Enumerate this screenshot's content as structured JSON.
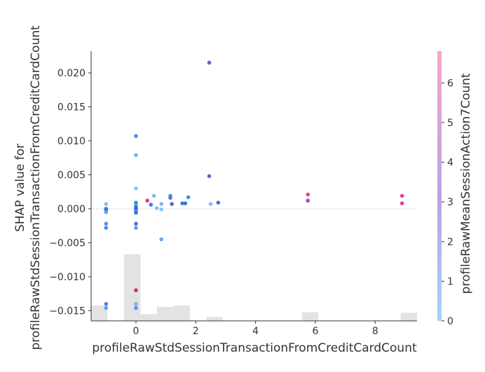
{
  "chart_data": {
    "type": "scatter",
    "xlabel": "profileRawStdSessionTransactionFromCreditCardCount",
    "ylabel_lines": [
      "SHAP value for",
      "profileRawStdSessionTransactionFromCreditCardCount"
    ],
    "colorbar_label": "profileRawMeanSessionAction7Count",
    "xlim": [
      -1.5,
      9.4
    ],
    "ylim": [
      -0.0165,
      0.0232
    ],
    "x_ticks": [
      0,
      2,
      4,
      6,
      8
    ],
    "y_ticks": [
      -0.015,
      -0.01,
      -0.005,
      0.0,
      0.005,
      0.01,
      0.015,
      0.02
    ],
    "y_tick_labels": [
      "−0.015",
      "−0.010",
      "−0.005",
      "0.000",
      "0.005",
      "0.010",
      "0.015",
      "0.020"
    ],
    "colorbar_range": [
      0,
      6.8
    ],
    "colorbar_ticks": [
      0,
      1,
      2,
      3,
      4,
      5,
      6
    ],
    "colors": {
      "low": "#a3d4f7",
      "mid": "#b9a3e6",
      "high": "#f5a6c8",
      "histogram": "#e3e3e3",
      "zero_line": "#c8c8c8",
      "axis": "#333333"
    },
    "histogram": {
      "max_count": 100,
      "bins": [
        {
          "x0": -1.5,
          "x1": -0.95,
          "count": 23
        },
        {
          "x0": -0.95,
          "x1": -0.4,
          "count": 0
        },
        {
          "x0": -0.4,
          "x1": 0.15,
          "count": 100
        },
        {
          "x0": 0.15,
          "x1": 0.7,
          "count": 10
        },
        {
          "x0": 0.7,
          "x1": 1.25,
          "count": 21
        },
        {
          "x0": 1.25,
          "x1": 1.8,
          "count": 23
        },
        {
          "x0": 1.8,
          "x1": 2.35,
          "count": 0
        },
        {
          "x0": 2.35,
          "x1": 2.9,
          "count": 6
        },
        {
          "x0": 2.9,
          "x1": 5.55,
          "count": 0
        },
        {
          "x0": 5.55,
          "x1": 6.1,
          "count": 13
        },
        {
          "x0": 6.1,
          "x1": 8.85,
          "count": 0
        },
        {
          "x0": 8.85,
          "x1": 9.4,
          "count": 12
        }
      ]
    },
    "points": [
      {
        "x": -1.0,
        "y": 0.0007,
        "c": 0.3
      },
      {
        "x": -1.0,
        "y": 0.0,
        "c": 1.5
      },
      {
        "x": -1.0,
        "y": -0.0002,
        "c": 1.6
      },
      {
        "x": -1.0,
        "y": -0.0005,
        "c": 0.8
      },
      {
        "x": -1.0,
        "y": -0.0022,
        "c": 1.2
      },
      {
        "x": -1.0,
        "y": -0.0028,
        "c": 1.4
      },
      {
        "x": -1.0,
        "y": -0.014,
        "c": 1.5
      },
      {
        "x": -1.0,
        "y": -0.0146,
        "c": 1.0
      },
      {
        "x": 0.0,
        "y": 0.0107,
        "c": 1.3
      },
      {
        "x": 0.0,
        "y": 0.0079,
        "c": 0.6
      },
      {
        "x": 0.0,
        "y": 0.003,
        "c": 0.2
      },
      {
        "x": 0.0,
        "y": 0.0009,
        "c": 1.5
      },
      {
        "x": 0.0,
        "y": 0.0005,
        "c": 1.0
      },
      {
        "x": 0.0,
        "y": 0.0002,
        "c": 1.7
      },
      {
        "x": 0.0,
        "y": 0.0,
        "c": 2.0
      },
      {
        "x": 0.0,
        "y": -0.0003,
        "c": 1.4
      },
      {
        "x": 0.0,
        "y": -0.0006,
        "c": 1.9
      },
      {
        "x": 0.0,
        "y": -0.0022,
        "c": 2.2
      },
      {
        "x": 0.0,
        "y": -0.0028,
        "c": 1.0
      },
      {
        "x": 0.0,
        "y": -0.012,
        "c": 6.5
      },
      {
        "x": 0.0,
        "y": -0.014,
        "c": 0.5
      },
      {
        "x": 0.0,
        "y": -0.0146,
        "c": 1.2
      },
      {
        "x": 0.38,
        "y": 0.0012,
        "c": 6.0
      },
      {
        "x": 0.5,
        "y": 0.0006,
        "c": 1.8
      },
      {
        "x": 0.6,
        "y": 0.0019,
        "c": 0.4
      },
      {
        "x": 0.7,
        "y": 0.0001,
        "c": 0.3
      },
      {
        "x": 0.85,
        "y": 0.0007,
        "c": 0.5
      },
      {
        "x": 0.85,
        "y": -0.0001,
        "c": 0.2
      },
      {
        "x": 0.85,
        "y": -0.0045,
        "c": 0.8
      },
      {
        "x": 1.15,
        "y": 0.0019,
        "c": 1.3
      },
      {
        "x": 1.15,
        "y": 0.0016,
        "c": 1.5
      },
      {
        "x": 1.2,
        "y": 0.0007,
        "c": 2.5
      },
      {
        "x": 1.55,
        "y": 0.0008,
        "c": 1.6
      },
      {
        "x": 1.65,
        "y": 0.0008,
        "c": 1.8
      },
      {
        "x": 1.75,
        "y": 0.0017,
        "c": 1.4
      },
      {
        "x": 2.45,
        "y": 0.0215,
        "c": 2.5
      },
      {
        "x": 2.45,
        "y": 0.0048,
        "c": 2.7
      },
      {
        "x": 2.5,
        "y": 0.0007,
        "c": 0.3
      },
      {
        "x": 2.75,
        "y": 0.0009,
        "c": 1.8
      },
      {
        "x": 5.75,
        "y": 0.0021,
        "c": 5.5
      },
      {
        "x": 5.75,
        "y": 0.0012,
        "c": 3.5
      },
      {
        "x": 8.9,
        "y": 0.0019,
        "c": 5.2
      },
      {
        "x": 8.9,
        "y": 0.0008,
        "c": 5.5
      }
    ]
  }
}
